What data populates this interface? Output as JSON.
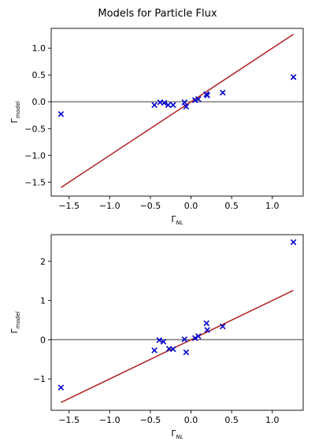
{
  "figure": {
    "title": "Models for Particle Flux"
  },
  "colors": {
    "marker": "#0000cc",
    "fit_line": "#b22222",
    "zero_line": "#666666",
    "axes": "#000000"
  },
  "chart_data": [
    {
      "type": "scatter",
      "xlabel_main": "Γ",
      "xlabel_sub": "NL",
      "ylabel_main": "Γ",
      "ylabel_sub": "model",
      "xlim": [
        -1.72,
        1.38
      ],
      "ylim": [
        -1.76,
        1.37
      ],
      "xticks": [
        -1.5,
        -1.0,
        -0.5,
        0.0,
        0.5,
        1.0
      ],
      "xtick_labels": [
        "−1.5",
        "−1.0",
        "−0.5",
        "0.0",
        "0.5",
        "1.0"
      ],
      "yticks": [
        -1.5,
        -1.0,
        -0.5,
        0.0,
        0.5,
        1.0
      ],
      "ytick_labels": [
        "−1.5",
        "−1.0",
        "−0.5",
        "0.0",
        "0.5",
        "1.0"
      ],
      "marker": "x",
      "points": [
        {
          "x": -1.6,
          "y": -0.23
        },
        {
          "x": -0.45,
          "y": -0.06
        },
        {
          "x": -0.38,
          "y": -0.01
        },
        {
          "x": -0.33,
          "y": -0.02
        },
        {
          "x": -0.28,
          "y": -0.06
        },
        {
          "x": -0.22,
          "y": -0.06
        },
        {
          "x": -0.08,
          "y": -0.01
        },
        {
          "x": -0.06,
          "y": -0.09
        },
        {
          "x": 0.05,
          "y": 0.03
        },
        {
          "x": 0.09,
          "y": 0.05
        },
        {
          "x": 0.19,
          "y": 0.14
        },
        {
          "x": 0.2,
          "y": 0.12
        },
        {
          "x": 0.39,
          "y": 0.17
        },
        {
          "x": 1.26,
          "y": 0.46
        }
      ],
      "reference_line": {
        "x": [
          -1.6,
          1.26
        ],
        "y": [
          -1.6,
          1.26
        ]
      },
      "zero_line": 0
    },
    {
      "type": "scatter",
      "xlabel_main": "Γ",
      "xlabel_sub": "NL",
      "ylabel_main": "Γ",
      "ylabel_sub": "model",
      "xlim": [
        -1.72,
        1.38
      ],
      "ylim": [
        -1.8,
        2.68
      ],
      "xticks": [
        -1.5,
        -1.0,
        -0.5,
        0.0,
        0.5,
        1.0
      ],
      "xtick_labels": [
        "−1.5",
        "−1.0",
        "−0.5",
        "0.0",
        "0.5",
        "1.0"
      ],
      "yticks": [
        -1,
        0,
        1,
        2
      ],
      "ytick_labels": [
        "−1",
        "0",
        "1",
        "2"
      ],
      "marker": "x",
      "points": [
        {
          "x": -1.6,
          "y": -1.22
        },
        {
          "x": -0.45,
          "y": -0.27
        },
        {
          "x": -0.39,
          "y": -0.01
        },
        {
          "x": -0.34,
          "y": -0.05
        },
        {
          "x": -0.27,
          "y": -0.23
        },
        {
          "x": -0.22,
          "y": -0.24
        },
        {
          "x": -0.08,
          "y": 0.01
        },
        {
          "x": -0.06,
          "y": -0.32
        },
        {
          "x": 0.05,
          "y": 0.04
        },
        {
          "x": 0.09,
          "y": 0.09
        },
        {
          "x": 0.19,
          "y": 0.42
        },
        {
          "x": 0.2,
          "y": 0.25
        },
        {
          "x": 0.39,
          "y": 0.34
        },
        {
          "x": 1.26,
          "y": 2.49
        }
      ],
      "reference_line": {
        "x": [
          -1.6,
          1.26
        ],
        "y": [
          -1.6,
          1.26
        ]
      },
      "zero_line": 0
    }
  ]
}
